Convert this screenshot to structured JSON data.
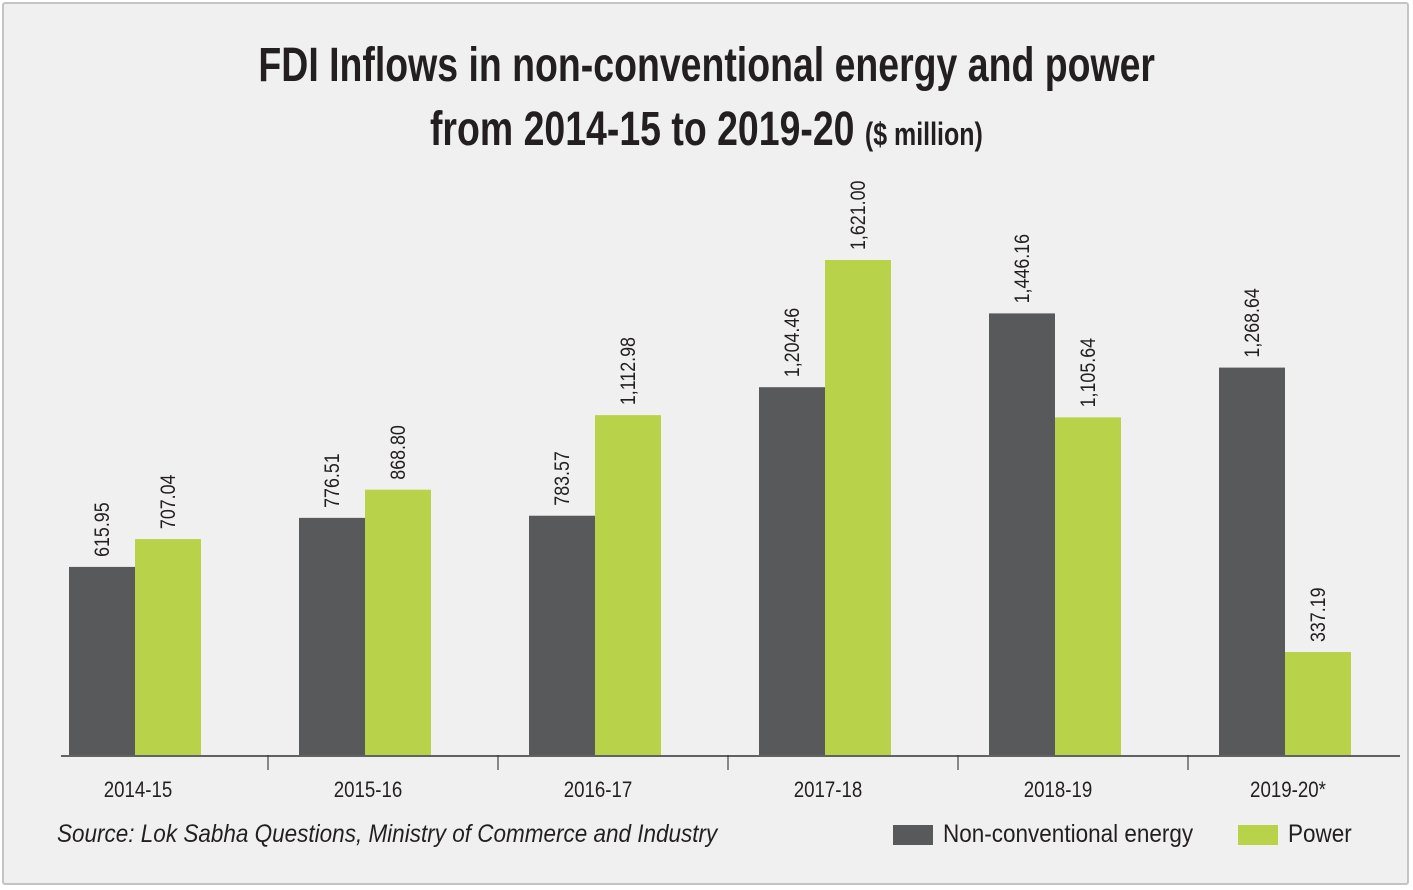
{
  "chart_data": {
    "type": "bar",
    "title_line1": "FDI Inflows in non-conventional energy and power",
    "title_line2": "from 2014-15 to 2019-20",
    "title_unit": "($ million)",
    "categories": [
      "2014-15",
      "2015-16",
      "2016-17",
      "2017-18",
      "2018-19",
      "2019-20*"
    ],
    "series": [
      {
        "name": "Non-conventional energy",
        "color": "#58595b",
        "values": [
          615.95,
          776.51,
          783.57,
          1204.46,
          1446.16,
          1268.64
        ],
        "labels": [
          "615.95",
          "776.51",
          "783.57",
          "1,204.46",
          "1,446.16",
          "1,268.64"
        ]
      },
      {
        "name": "Power",
        "color": "#b8d24a",
        "values": [
          707.04,
          868.8,
          1112.98,
          1621.0,
          1105.64,
          337.19
        ],
        "labels": [
          "707.04",
          "868.80",
          "1,112.98",
          "1,621.00",
          "1,105.64",
          "337.19"
        ]
      }
    ],
    "ylim": [
      0,
      1800
    ],
    "grid": false,
    "legend_position": "bottom-right",
    "source": "Source: Lok Sabha Questions, Ministry of Commerce and Industry"
  }
}
